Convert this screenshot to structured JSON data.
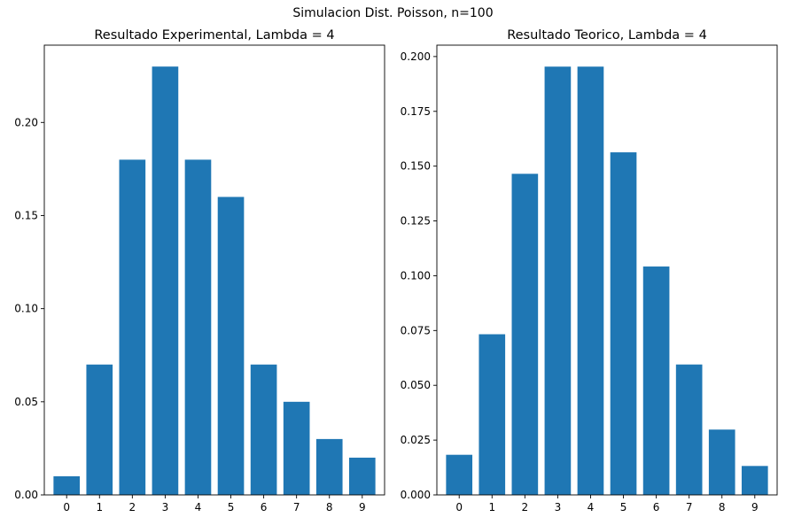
{
  "figure": {
    "suptitle": "Simulacion Dist. Poisson, n=100",
    "bar_color": "#1f77b4"
  },
  "chart_data": [
    {
      "type": "bar",
      "title": "Resultado Experimental, Lambda = 4",
      "xlabel": "",
      "ylabel": "",
      "categories": [
        "0",
        "1",
        "2",
        "3",
        "4",
        "5",
        "6",
        "7",
        "8",
        "9"
      ],
      "values": [
        0.01,
        0.07,
        0.18,
        0.23,
        0.18,
        0.16,
        0.07,
        0.05,
        0.03,
        0.02
      ],
      "ylim": [
        0,
        0.2415
      ],
      "yticks": [
        "0.00",
        "0.05",
        "0.10",
        "0.15",
        "0.20"
      ],
      "grid": false
    },
    {
      "type": "bar",
      "title": "Resultado Teorico, Lambda = 4",
      "xlabel": "",
      "ylabel": "",
      "categories": [
        "0",
        "1",
        "2",
        "3",
        "4",
        "5",
        "6",
        "7",
        "8",
        "9"
      ],
      "values": [
        0.0183,
        0.0733,
        0.1465,
        0.1954,
        0.1954,
        0.1563,
        0.1042,
        0.0595,
        0.0298,
        0.0132
      ],
      "ylim": [
        0,
        0.2052
      ],
      "yticks": [
        "0.000",
        "0.025",
        "0.050",
        "0.075",
        "0.100",
        "0.125",
        "0.150",
        "0.175",
        "0.200"
      ],
      "grid": false
    }
  ]
}
